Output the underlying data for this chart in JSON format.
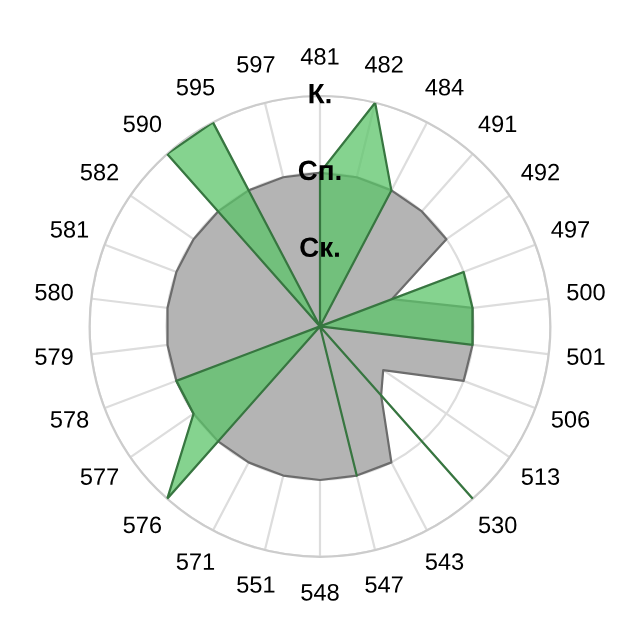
{
  "chart_data": {
    "type": "radar",
    "categories": [
      "481",
      "482",
      "484",
      "491",
      "492",
      "497",
      "500",
      "501",
      "506",
      "513",
      "530",
      "543",
      "547",
      "548",
      "551",
      "571",
      "576",
      "577",
      "578",
      "579",
      "580",
      "581",
      "582",
      "590",
      "595",
      "597"
    ],
    "series": [
      {
        "color": "#b4b4b4",
        "values": [
          2,
          2,
          2,
          2,
          2,
          1,
          2,
          2,
          2,
          1,
          1.2,
          2,
          2,
          2,
          2,
          2,
          2,
          2,
          2,
          2,
          2,
          2,
          2,
          2,
          2,
          2
        ]
      },
      {
        "color": "#5cc46a",
        "values": [
          2,
          3,
          2,
          0,
          0,
          2,
          2,
          2,
          0,
          0,
          3,
          0,
          2,
          0,
          0,
          0,
          3,
          2,
          2,
          0,
          0,
          0,
          0,
          3,
          3,
          0
        ]
      }
    ],
    "ylim": [
      0,
      3
    ],
    "yticks": [
      {
        "value": 1,
        "label": "Ск."
      },
      {
        "value": 2,
        "label": "Сп."
      },
      {
        "value": 3,
        "label": "К."
      }
    ],
    "grid": true,
    "marker": "none",
    "line_style": "solid"
  }
}
